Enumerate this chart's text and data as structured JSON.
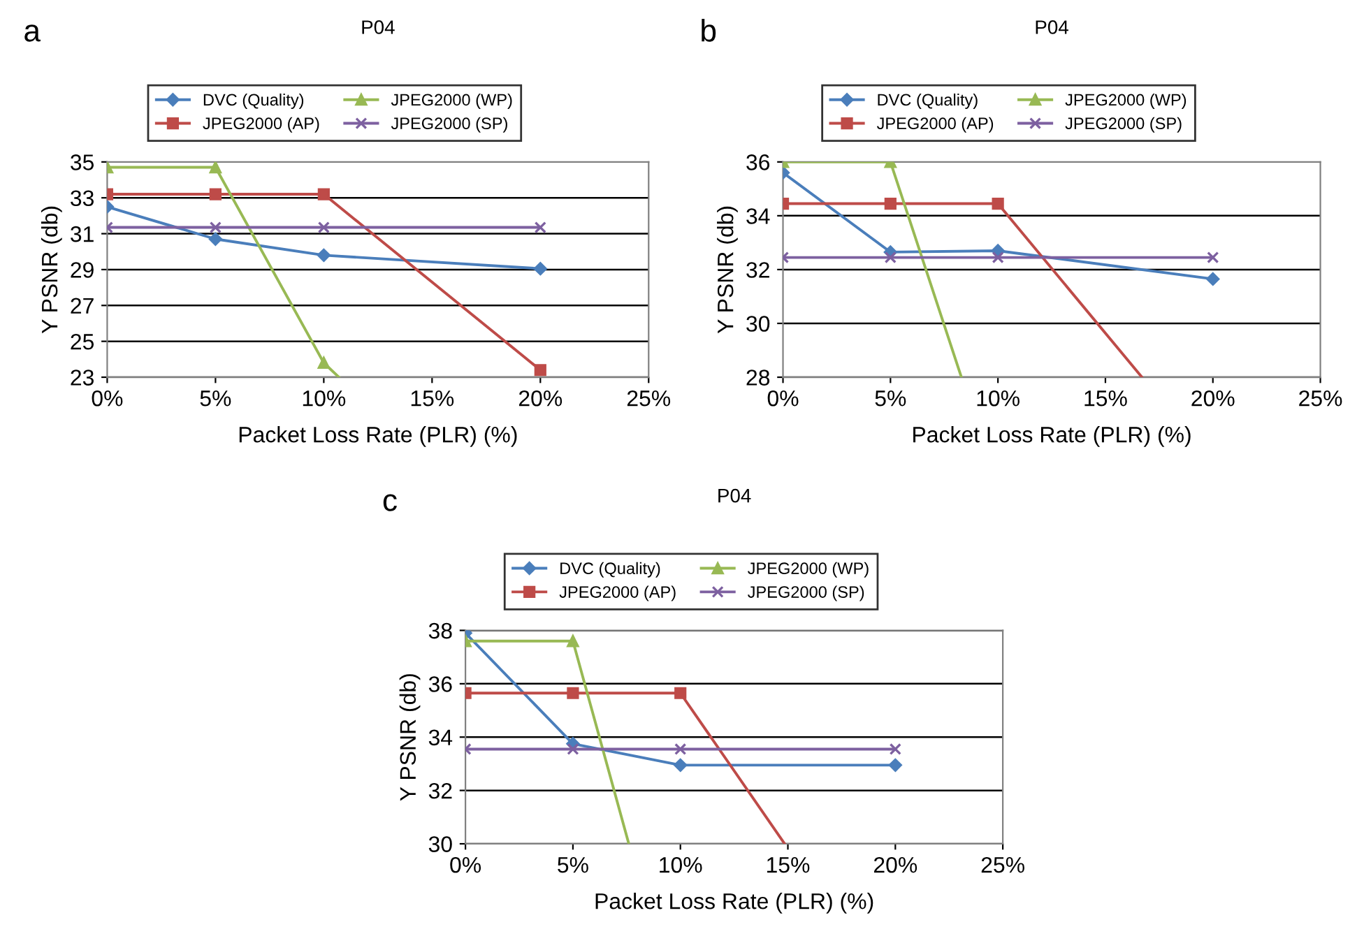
{
  "chart_data": [
    {
      "type": "line",
      "title": "P04",
      "annotations": [
        "a"
      ],
      "xlabel": "Packet Loss Rate (PLR) (%)",
      "ylabel": "Y PSNR (db)",
      "xlim": [
        0,
        25
      ],
      "xticks": [
        {
          "value": 0,
          "label": "0%"
        },
        {
          "value": 5,
          "label": "5%"
        },
        {
          "value": 10,
          "label": "10%"
        },
        {
          "value": 15,
          "label": "15%"
        },
        {
          "value": 20,
          "label": "20%"
        },
        {
          "value": 25,
          "label": "25%"
        }
      ],
      "ylim": [
        23,
        35
      ],
      "yticks": [
        23,
        25,
        27,
        29,
        31,
        33,
        35
      ],
      "grid": "y",
      "legend": "top",
      "line_style": "solid",
      "series": [
        {
          "name": "DVC (Quality)",
          "color": "#4a7ebb",
          "marker": "diamond",
          "x": [
            0,
            5,
            10,
            20
          ],
          "values": [
            32.5,
            30.7,
            29.8,
            29.05
          ]
        },
        {
          "name": "JPEG2000 (AP)",
          "color": "#be4b48",
          "marker": "square",
          "x": [
            0,
            5,
            10,
            20
          ],
          "values": [
            33.2,
            33.2,
            33.2,
            23.4
          ]
        },
        {
          "name": "JPEG2000 (WP)",
          "color": "#98b954",
          "marker": "triangle",
          "x": [
            0,
            5,
            10,
            10.7
          ],
          "values": [
            34.7,
            34.7,
            23.8,
            23
          ]
        },
        {
          "name": "JPEG2000 (SP)",
          "color": "#7d60a0",
          "marker": "cross",
          "x": [
            0,
            5,
            10,
            20
          ],
          "values": [
            31.35,
            31.35,
            31.35,
            31.35
          ]
        }
      ]
    },
    {
      "type": "line",
      "title": "P04",
      "annotations": [
        "b"
      ],
      "xlabel": "Packet Loss Rate (PLR) (%)",
      "ylabel": "Y PSNR (db)",
      "xlim": [
        0,
        25
      ],
      "xticks": [
        {
          "value": 0,
          "label": "0%"
        },
        {
          "value": 5,
          "label": "5%"
        },
        {
          "value": 10,
          "label": "10%"
        },
        {
          "value": 15,
          "label": "15%"
        },
        {
          "value": 20,
          "label": "20%"
        },
        {
          "value": 25,
          "label": "25%"
        }
      ],
      "ylim": [
        28,
        36
      ],
      "yticks": [
        28,
        30,
        32,
        34,
        36
      ],
      "grid": "y",
      "legend": "top",
      "line_style": "solid",
      "series": [
        {
          "name": "DVC (Quality)",
          "color": "#4a7ebb",
          "marker": "diamond",
          "x": [
            0,
            5,
            10,
            20
          ],
          "values": [
            35.6,
            32.65,
            32.7,
            31.65
          ]
        },
        {
          "name": "JPEG2000 (AP)",
          "color": "#be4b48",
          "marker": "square",
          "x": [
            0,
            5,
            10,
            16.7
          ],
          "values": [
            34.45,
            34.45,
            34.45,
            28
          ]
        },
        {
          "name": "JPEG2000 (WP)",
          "color": "#98b954",
          "marker": "triangle",
          "x": [
            0,
            5,
            8.3
          ],
          "values": [
            36,
            36,
            28
          ]
        },
        {
          "name": "JPEG2000 (SP)",
          "color": "#7d60a0",
          "marker": "cross",
          "x": [
            0,
            5,
            10,
            20
          ],
          "values": [
            32.45,
            32.45,
            32.45,
            32.45
          ]
        }
      ]
    },
    {
      "type": "line",
      "title": "P04",
      "annotations": [
        "c"
      ],
      "xlabel": "Packet Loss Rate (PLR) (%)",
      "ylabel": "Y PSNR (db)",
      "xlim": [
        0,
        25
      ],
      "xticks": [
        {
          "value": 0,
          "label": "0%"
        },
        {
          "value": 5,
          "label": "5%"
        },
        {
          "value": 10,
          "label": "10%"
        },
        {
          "value": 15,
          "label": "15%"
        },
        {
          "value": 20,
          "label": "20%"
        },
        {
          "value": 25,
          "label": "25%"
        }
      ],
      "ylim": [
        30,
        38
      ],
      "yticks": [
        30,
        32,
        34,
        36,
        38
      ],
      "grid": "y",
      "legend": "top",
      "line_style": "solid",
      "series": [
        {
          "name": "DVC (Quality)",
          "color": "#4a7ebb",
          "marker": "diamond",
          "x": [
            0,
            5,
            10,
            20
          ],
          "values": [
            37.9,
            33.75,
            32.95,
            32.95
          ]
        },
        {
          "name": "JPEG2000 (AP)",
          "color": "#be4b48",
          "marker": "square",
          "x": [
            0,
            5,
            10,
            14.85
          ],
          "values": [
            35.65,
            35.65,
            35.65,
            30
          ]
        },
        {
          "name": "JPEG2000 (WP)",
          "color": "#98b954",
          "marker": "triangle",
          "x": [
            0,
            5,
            7.6
          ],
          "values": [
            37.6,
            37.6,
            30
          ]
        },
        {
          "name": "JPEG2000 (SP)",
          "color": "#7d60a0",
          "marker": "cross",
          "x": [
            0,
            5,
            10,
            20
          ],
          "values": [
            33.55,
            33.55,
            33.55,
            33.55
          ]
        }
      ]
    }
  ]
}
